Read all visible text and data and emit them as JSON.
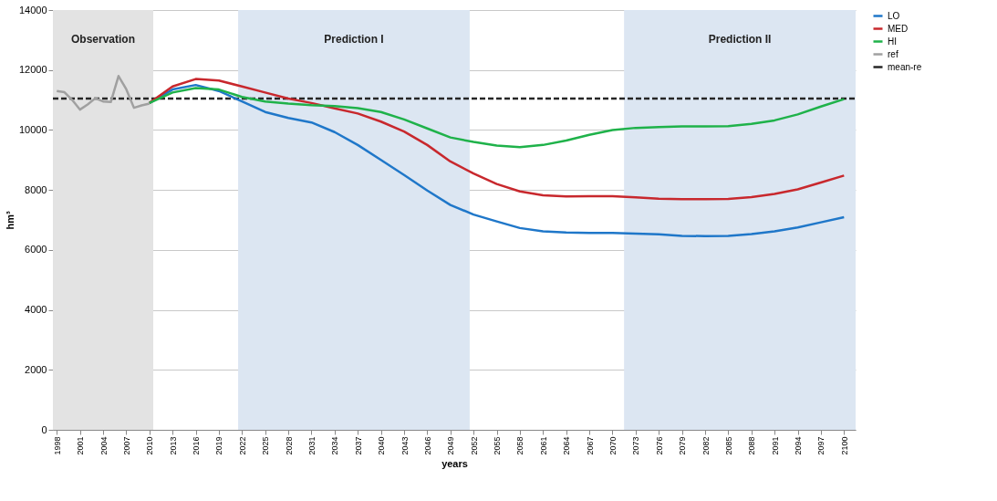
{
  "chart_data": {
    "type": "line",
    "xlabel": "years",
    "ylabel": "hm³",
    "xlim": [
      1997.5,
      2101.5
    ],
    "ylim": [
      0,
      14000
    ],
    "xticks": [
      1998,
      2001,
      2004,
      2007,
      2010,
      2013,
      2016,
      2019,
      2022,
      2025,
      2028,
      2031,
      2034,
      2037,
      2040,
      2043,
      2046,
      2049,
      2052,
      2055,
      2058,
      2061,
      2064,
      2067,
      2070,
      2073,
      2076,
      2079,
      2082,
      2085,
      2088,
      2091,
      2094,
      2097,
      2100
    ],
    "yticks": [
      0,
      2000,
      4000,
      6000,
      8000,
      10000,
      12000,
      14000
    ],
    "grid": "y",
    "legend": "right",
    "bands": [
      {
        "axis": "x",
        "from": 1997.5,
        "to": 2010.5,
        "label": "Observation",
        "color": "#e3e3e3"
      },
      {
        "axis": "x",
        "from": 2021.5,
        "to": 2051.5,
        "label": "Prediction I",
        "color": "#dce6f2"
      },
      {
        "axis": "x",
        "from": 2071.5,
        "to": 2101.5,
        "label": "Prediction II",
        "color": "#dce6f2"
      }
    ],
    "ref_lines": [
      {
        "axis": "y",
        "value": 11050,
        "label": "mean-re",
        "color": "#262626",
        "line_style": "dashed"
      }
    ],
    "series": [
      {
        "name": "LO",
        "color": "#1f77c9",
        "x": [
          2010,
          2013,
          2016,
          2019,
          2022,
          2025,
          2028,
          2031,
          2034,
          2037,
          2040,
          2043,
          2046,
          2049,
          2052,
          2055,
          2058,
          2061,
          2064,
          2067,
          2070,
          2073,
          2076,
          2079,
          2082,
          2085,
          2088,
          2091,
          2094,
          2097,
          2100
        ],
        "values": [
          10900,
          11350,
          11500,
          11300,
          10950,
          10600,
          10400,
          10250,
          9930,
          9500,
          9000,
          8500,
          7980,
          7500,
          7180,
          6950,
          6730,
          6620,
          6580,
          6570,
          6570,
          6540,
          6520,
          6470,
          6460,
          6470,
          6530,
          6620,
          6750,
          6920,
          7090
        ]
      },
      {
        "name": "MED",
        "color": "#c8282d",
        "x": [
          2010,
          2013,
          2016,
          2019,
          2022,
          2025,
          2028,
          2031,
          2034,
          2037,
          2040,
          2043,
          2046,
          2049,
          2052,
          2055,
          2058,
          2061,
          2064,
          2067,
          2070,
          2073,
          2076,
          2079,
          2082,
          2085,
          2088,
          2091,
          2094,
          2097,
          2100
        ],
        "values": [
          10900,
          11450,
          11700,
          11650,
          11450,
          11250,
          11050,
          10900,
          10720,
          10550,
          10280,
          9950,
          9500,
          8950,
          8550,
          8200,
          7950,
          7820,
          7780,
          7790,
          7790,
          7750,
          7710,
          7690,
          7690,
          7700,
          7760,
          7870,
          8020,
          8250,
          8480
        ]
      },
      {
        "name": "HI",
        "color": "#1fb24a",
        "x": [
          2010,
          2013,
          2016,
          2019,
          2022,
          2025,
          2028,
          2031,
          2034,
          2037,
          2040,
          2043,
          2046,
          2049,
          2052,
          2055,
          2058,
          2061,
          2064,
          2067,
          2070,
          2073,
          2076,
          2079,
          2082,
          2085,
          2088,
          2091,
          2094,
          2097,
          2100
        ],
        "values": [
          10900,
          11250,
          11400,
          11350,
          11100,
          10950,
          10880,
          10830,
          10800,
          10730,
          10600,
          10350,
          10050,
          9750,
          9600,
          9480,
          9430,
          9500,
          9650,
          9840,
          10000,
          10070,
          10100,
          10120,
          10120,
          10130,
          10200,
          10320,
          10520,
          10780,
          11030
        ]
      },
      {
        "name": "ref",
        "color": "#a0a0a0",
        "x": [
          1998,
          1999,
          2000,
          2001,
          2002,
          2003,
          2004,
          2005,
          2006,
          2007,
          2008,
          2009,
          2010
        ],
        "values": [
          11300,
          11260,
          11000,
          10680,
          10850,
          11060,
          10950,
          10930,
          11800,
          11360,
          10740,
          10820,
          10880
        ]
      }
    ]
  }
}
